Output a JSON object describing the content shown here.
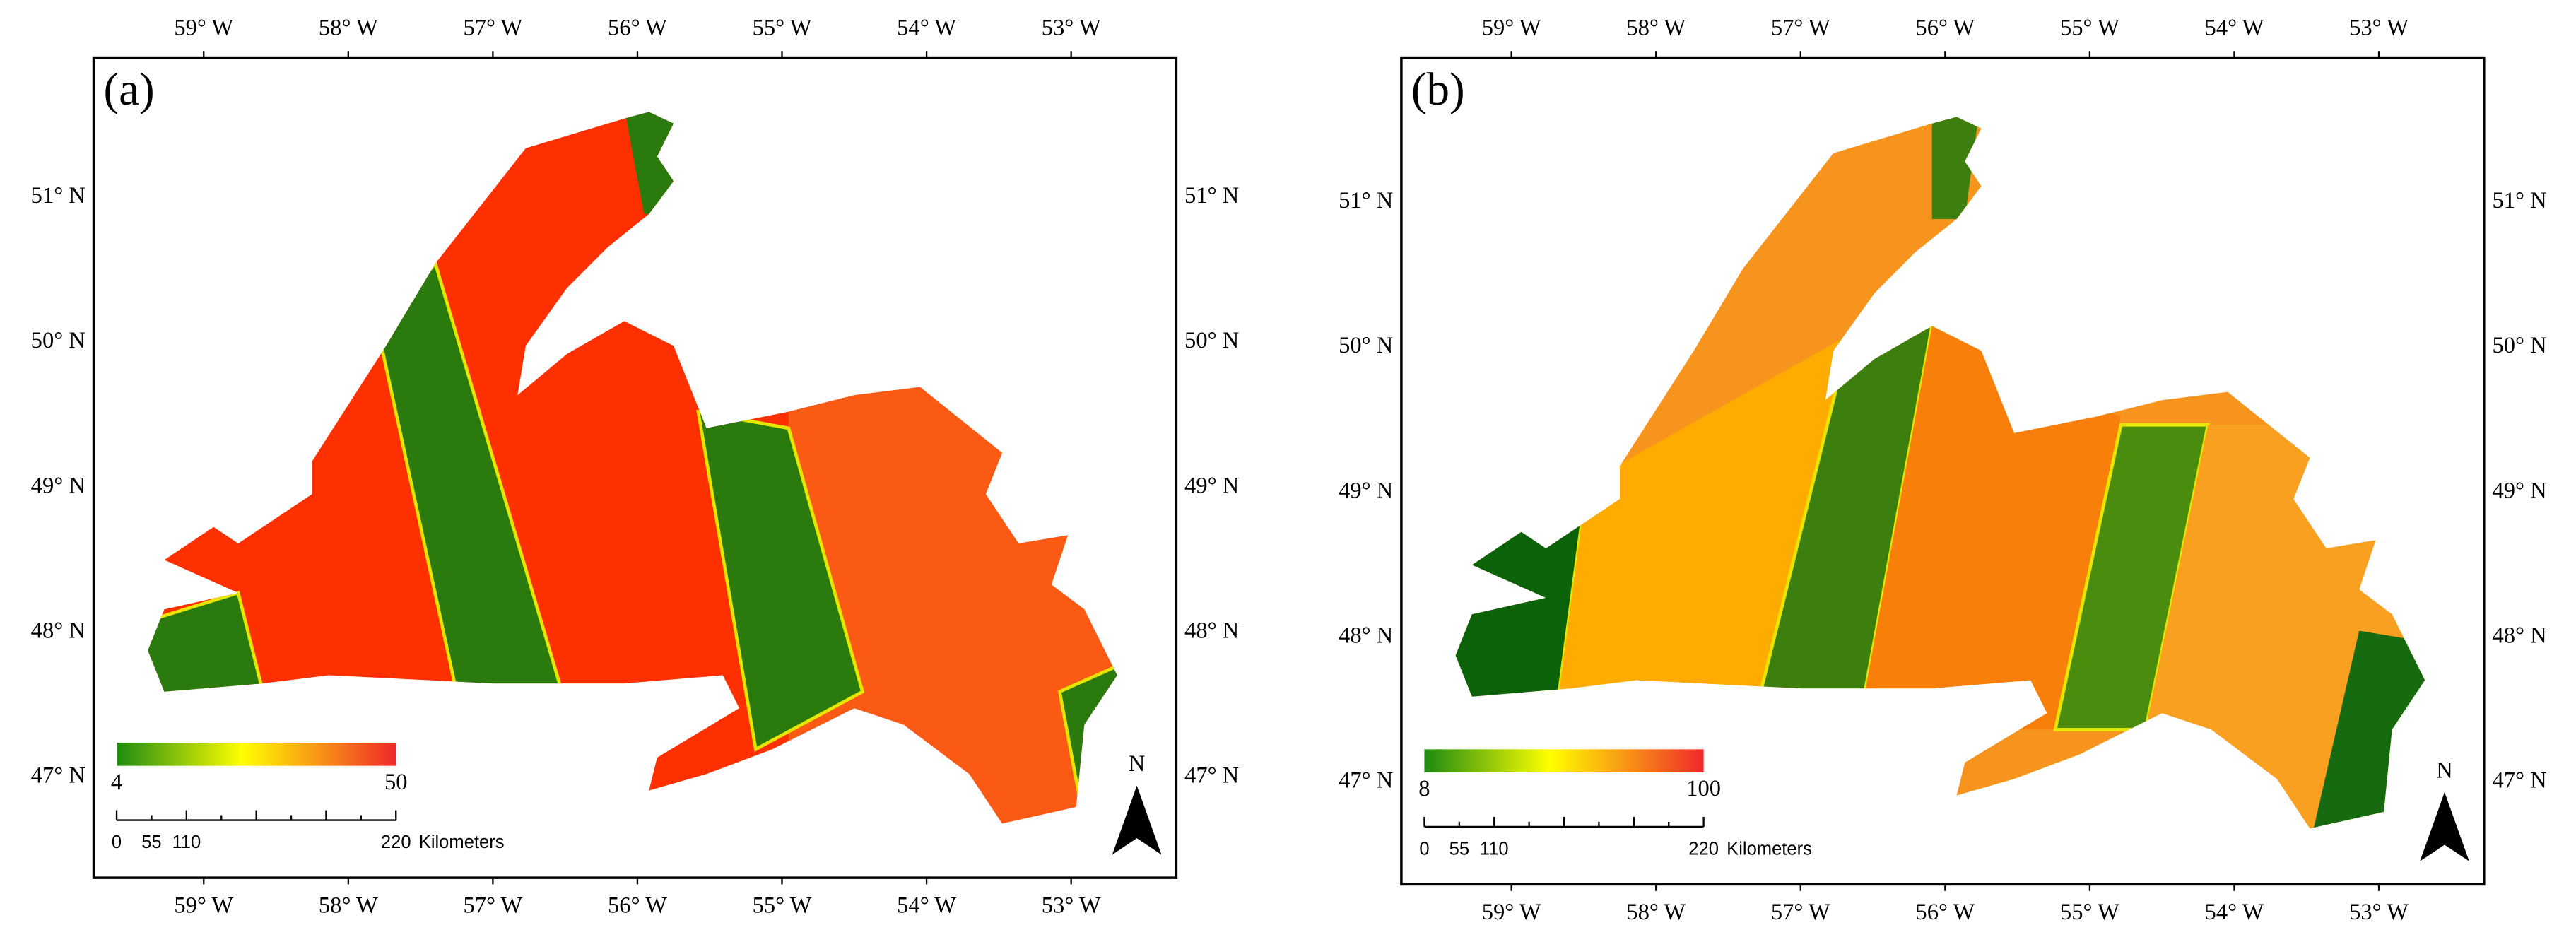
{
  "panels": [
    {
      "label": "(a)",
      "legend": {
        "min": "4",
        "max": "50"
      }
    },
    {
      "label": "(b)",
      "legend": {
        "min": "8",
        "max": "100"
      }
    }
  ],
  "longitude_labels": [
    "59° W",
    "58° W",
    "57° W",
    "56° W",
    "55° W",
    "54° W",
    "53° W"
  ],
  "latitude_labels": [
    "51° N",
    "50° N",
    "49° N",
    "48° N",
    "47° N"
  ],
  "scale_bar": {
    "ticks": [
      "0",
      "55",
      "110",
      "220"
    ],
    "unit": "Kilometers"
  },
  "north": "N"
}
